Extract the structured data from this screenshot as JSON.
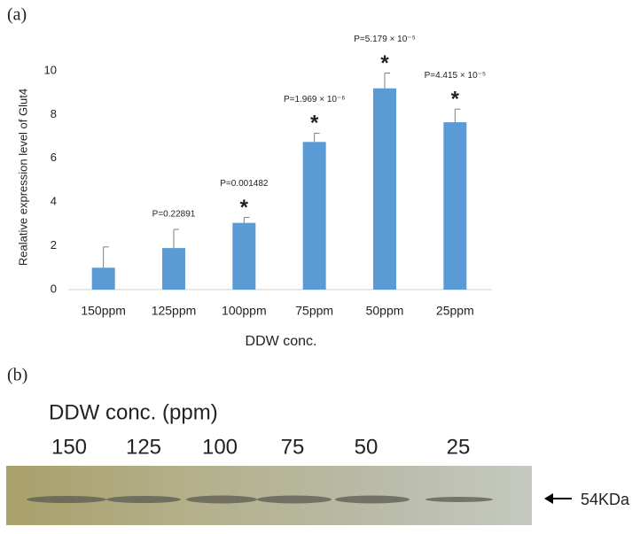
{
  "panel_a_label": "(a)",
  "chart_data": {
    "type": "bar",
    "ylabel": "Realative expression level of Glut4",
    "xlabel": "DDW conc.",
    "categories": [
      "150ppm",
      "125ppm",
      "100ppm",
      "75ppm",
      "50ppm",
      "25ppm"
    ],
    "values": [
      1.0,
      1.9,
      3.05,
      6.75,
      9.2,
      7.65
    ],
    "errors": [
      0.95,
      0.85,
      0.25,
      0.4,
      0.7,
      0.6
    ],
    "p_values": [
      null,
      "P=0.22891",
      "P=0.001482",
      "P=1.969 × 10⁻⁶",
      "P=5.179 × 10⁻⁵",
      "P=4.415 × 10⁻⁵"
    ],
    "stars": [
      null,
      null,
      "*",
      "*",
      "*",
      "*"
    ],
    "color": "#5b9bd5",
    "ylim": [
      0,
      10
    ],
    "yticks": [
      0,
      2,
      4,
      6,
      8,
      10
    ],
    "grid": false
  },
  "panel_b": {
    "label": "(b)",
    "title": "DDW conc.  (ppm)",
    "lanes": [
      "150",
      "125",
      "100",
      "75",
      "50",
      "25"
    ],
    "marker": "54KDa"
  }
}
